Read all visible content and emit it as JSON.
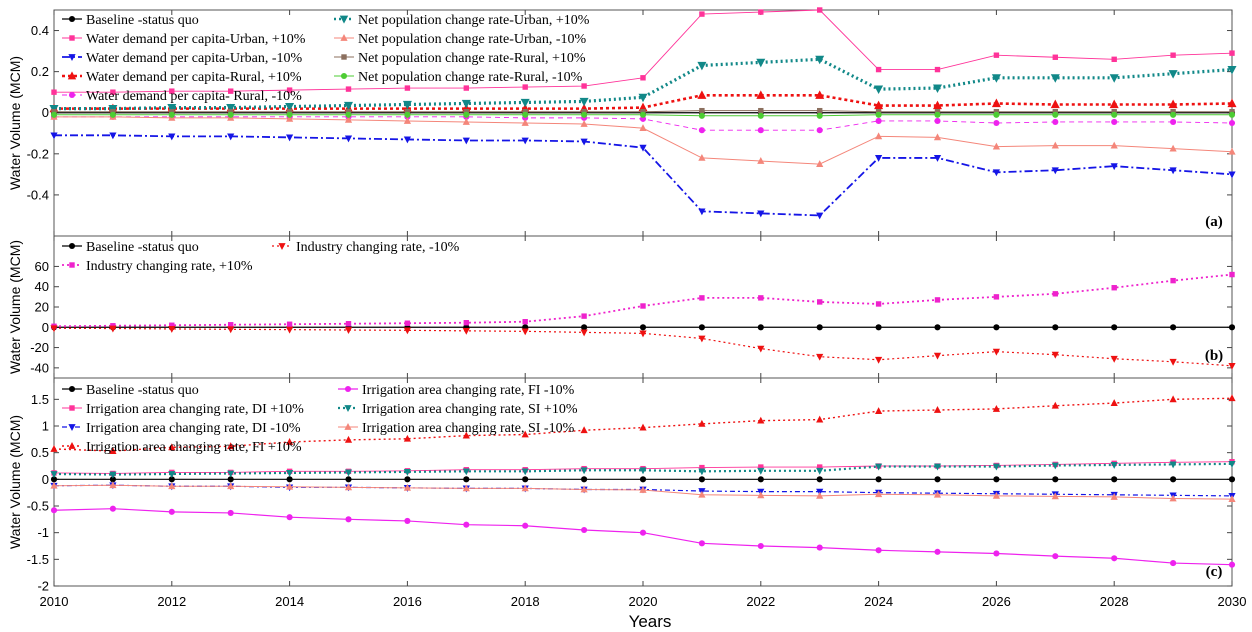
{
  "xlabel": "Years",
  "chart_data": [
    {
      "type": "line",
      "tag": "(a)",
      "ylabel": "Water Volume (MCM)",
      "ylim": [
        -0.6,
        0.5
      ],
      "yticks": [
        -0.4,
        -0.2,
        0,
        0.2,
        0.4
      ],
      "ytick_labels": [
        "-0.4",
        "-0.2",
        "0",
        "0.2",
        "0.4"
      ],
      "xlim": [
        2010,
        2030
      ],
      "legend_cols": [
        [
          "baseline",
          "wdu_p",
          "wdu_m",
          "wdr_p",
          "wdr_m"
        ],
        [
          "npu_p",
          "npu_m",
          "npr_p",
          "npr_m"
        ]
      ],
      "series": [
        {
          "key": "baseline",
          "name": "Baseline -status quo",
          "color": "#000000",
          "dash": "",
          "marker": "circle",
          "width": 1.2,
          "values": [
            0,
            0,
            0,
            0,
            0,
            0,
            0,
            0,
            0,
            0,
            0,
            0,
            0,
            0,
            0,
            0,
            0,
            0,
            0,
            0,
            0
          ]
        },
        {
          "key": "wdu_p",
          "name": "Water demand per capita-Urban, +10%",
          "color": "#ff3399",
          "dash": "",
          "marker": "square",
          "width": 0.9,
          "values": [
            0.1,
            0.1,
            0.105,
            0.105,
            0.11,
            0.115,
            0.12,
            0.12,
            0.125,
            0.13,
            0.17,
            0.48,
            0.49,
            0.5,
            0.21,
            0.21,
            0.28,
            0.27,
            0.26,
            0.28,
            0.29
          ]
        },
        {
          "key": "wdu_m",
          "name": "Water demand per capita-Urban, -10%",
          "color": "#1515e6",
          "dash": "8,3,2,3",
          "marker": "triangle-down",
          "width": 1.8,
          "values": [
            -0.11,
            -0.11,
            -0.115,
            -0.115,
            -0.12,
            -0.125,
            -0.13,
            -0.135,
            -0.135,
            -0.14,
            -0.17,
            -0.48,
            -0.49,
            -0.5,
            -0.22,
            -0.22,
            -0.29,
            -0.28,
            -0.26,
            -0.28,
            -0.3
          ]
        },
        {
          "key": "wdr_p",
          "name": "Water demand per capita-Rural, +10%",
          "color": "#ee1111",
          "dash": "3,3",
          "marker": "triangle-up",
          "width": 2.6,
          "values": [
            0.02,
            0.02,
            0.02,
            0.02,
            0.02,
            0.02,
            0.02,
            0.02,
            0.02,
            0.02,
            0.025,
            0.085,
            0.085,
            0.085,
            0.035,
            0.035,
            0.045,
            0.04,
            0.04,
            0.04,
            0.045
          ]
        },
        {
          "key": "wdr_m",
          "name": "Water demand per capita- Rural, -10%",
          "color": "#ee22ee",
          "dash": "5,4",
          "marker": "circle",
          "width": 0.9,
          "values": [
            -0.02,
            -0.02,
            -0.02,
            -0.02,
            -0.02,
            -0.02,
            -0.02,
            -0.02,
            -0.025,
            -0.025,
            -0.03,
            -0.085,
            -0.085,
            -0.085,
            -0.04,
            -0.04,
            -0.05,
            -0.045,
            -0.045,
            -0.045,
            -0.05
          ]
        },
        {
          "key": "npu_p",
          "name": "Net population change rate-Urban, +10%",
          "color": "#118888",
          "dash": "2,3",
          "marker": "triangle-down",
          "width": 3.2,
          "values": [
            0.02,
            0.02,
            0.025,
            0.025,
            0.03,
            0.035,
            0.04,
            0.045,
            0.05,
            0.055,
            0.075,
            0.23,
            0.245,
            0.26,
            0.115,
            0.12,
            0.17,
            0.17,
            0.17,
            0.19,
            0.21
          ]
        },
        {
          "key": "npu_m",
          "name": "Net population change rate-Urban, -10%",
          "color": "#f4867a",
          "dash": "",
          "marker": "triangle-up",
          "width": 1.0,
          "values": [
            -0.02,
            -0.02,
            -0.025,
            -0.025,
            -0.03,
            -0.035,
            -0.04,
            -0.045,
            -0.05,
            -0.055,
            -0.075,
            -0.22,
            -0.235,
            -0.25,
            -0.115,
            -0.12,
            -0.165,
            -0.16,
            -0.16,
            -0.175,
            -0.19
          ]
        },
        {
          "key": "npr_p",
          "name": "Net population change rate-Rural, +10%",
          "color": "#8b6f5e",
          "dash": "",
          "marker": "square",
          "width": 1.0,
          "values": [
            0.005,
            0.005,
            0.005,
            0.005,
            0.005,
            0.005,
            0.005,
            0.005,
            0.005,
            0.005,
            0.005,
            0.01,
            0.01,
            0.01,
            0.005,
            0.005,
            0.005,
            0.005,
            0.005,
            0.005,
            0.005
          ]
        },
        {
          "key": "npr_m",
          "name": "Net population change rate-Rural, -10%",
          "color": "#4dcc33",
          "dash": "",
          "marker": "circle",
          "width": 1.0,
          "values": [
            -0.01,
            -0.01,
            -0.01,
            -0.01,
            -0.01,
            -0.01,
            -0.01,
            -0.01,
            -0.01,
            -0.01,
            -0.01,
            -0.015,
            -0.015,
            -0.015,
            -0.01,
            -0.01,
            -0.01,
            -0.01,
            -0.01,
            -0.01,
            -0.01
          ]
        }
      ]
    },
    {
      "type": "line",
      "tag": "(b)",
      "ylabel": "Water Volume (MCM)",
      "ylim": [
        -50,
        90
      ],
      "yticks": [
        -40,
        -20,
        0,
        20,
        40,
        60
      ],
      "ytick_labels": [
        "-40",
        "-20",
        "0",
        "20",
        "40",
        "60"
      ],
      "xlim": [
        2010,
        2030
      ],
      "legend_cols": [
        [
          "baseline",
          "ind_p"
        ],
        [
          "ind_m"
        ]
      ],
      "series": [
        {
          "key": "baseline",
          "name": "Baseline -status quo",
          "color": "#000000",
          "dash": "",
          "marker": "circle",
          "width": 1.2,
          "values": [
            0,
            0,
            0,
            0,
            0,
            0,
            0,
            0,
            0,
            0,
            0,
            0,
            0,
            0,
            0,
            0,
            0,
            0,
            0,
            0,
            0
          ]
        },
        {
          "key": "ind_p",
          "name": "Industry changing rate, +10%",
          "color": "#ee22cc",
          "dash": "2,3",
          "marker": "square",
          "width": 1.8,
          "values": [
            1,
            1.5,
            2,
            2.5,
            3,
            3.5,
            4,
            4.5,
            5.5,
            11,
            21,
            29,
            29,
            25,
            23,
            27,
            30,
            33,
            39,
            46,
            52
          ]
        },
        {
          "key": "ind_m",
          "name": "Industry changing rate, -10%",
          "color": "#ee1111",
          "dash": "2,3",
          "marker": "triangle-down",
          "width": 1.2,
          "values": [
            -1,
            -1.2,
            -1.6,
            -2,
            -2.3,
            -2.7,
            -3,
            -3.5,
            -4,
            -5,
            -6,
            -11,
            -21,
            -29,
            -32,
            -28,
            -24,
            -27,
            -31,
            -34,
            -38
          ]
        }
      ]
    },
    {
      "type": "line",
      "tag": "(c)",
      "ylabel": "Water Volume (MCM)",
      "ylim": [
        -2,
        1.9
      ],
      "yticks": [
        -2,
        -1.5,
        -1,
        -0.5,
        0,
        0.5,
        1,
        1.5
      ],
      "ytick_labels": [
        "-2",
        "-1.5",
        "-1",
        "-0.5",
        "0",
        "0.5",
        "1",
        "1.5"
      ],
      "xlim": [
        2010,
        2030
      ],
      "legend_cols": [
        [
          "baseline",
          "di_p",
          "di_m",
          "fi_p"
        ],
        [
          "fi_m",
          "si_p",
          "si_m"
        ]
      ],
      "series": [
        {
          "key": "baseline",
          "name": "Baseline -status quo",
          "color": "#000000",
          "dash": "",
          "marker": "circle",
          "width": 1.2,
          "values": [
            0,
            0,
            0,
            0,
            0,
            0,
            0,
            0,
            0,
            0,
            0,
            0,
            0,
            0,
            0,
            0,
            0,
            0,
            0,
            0,
            0
          ]
        },
        {
          "key": "di_p",
          "name": "Irrigation area changing rate,  DI +10%",
          "color": "#ff3399",
          "dash": "",
          "marker": "square",
          "width": 0.9,
          "values": [
            0.12,
            0.11,
            0.13,
            0.13,
            0.15,
            0.15,
            0.16,
            0.18,
            0.18,
            0.2,
            0.2,
            0.22,
            0.23,
            0.23,
            0.25,
            0.25,
            0.26,
            0.28,
            0.3,
            0.32,
            0.33
          ]
        },
        {
          "key": "di_m",
          "name": "Irrigation area changing rate,  DI -10%",
          "color": "#1515e6",
          "dash": "5,3,2,3",
          "marker": "triangle-down",
          "width": 1.2,
          "values": [
            -0.12,
            -0.11,
            -0.13,
            -0.13,
            -0.15,
            -0.15,
            -0.16,
            -0.17,
            -0.17,
            -0.19,
            -0.19,
            -0.22,
            -0.23,
            -0.23,
            -0.25,
            -0.26,
            -0.27,
            -0.28,
            -0.29,
            -0.3,
            -0.31
          ]
        },
        {
          "key": "fi_p",
          "name": "Irrigation area changing rate,  FI +10%",
          "color": "#ee1111",
          "dash": "2,3",
          "marker": "triangle-up",
          "width": 1.4,
          "values": [
            0.57,
            0.53,
            0.6,
            0.62,
            0.7,
            0.74,
            0.76,
            0.82,
            0.84,
            0.92,
            0.97,
            1.04,
            1.1,
            1.12,
            1.28,
            1.3,
            1.32,
            1.38,
            1.43,
            1.5,
            1.52
          ]
        },
        {
          "key": "fi_m",
          "name": "Irrigation area changing rate,  FI -10%",
          "color": "#ee22ee",
          "dash": "",
          "marker": "circle",
          "width": 1.2,
          "values": [
            -0.58,
            -0.55,
            -0.61,
            -0.63,
            -0.71,
            -0.75,
            -0.78,
            -0.85,
            -0.87,
            -0.95,
            -1.0,
            -1.2,
            -1.25,
            -1.28,
            -1.33,
            -1.36,
            -1.39,
            -1.44,
            -1.48,
            -1.57,
            -1.6
          ]
        },
        {
          "key": "si_p",
          "name": "Irrigation area changing rate,  SI +10%",
          "color": "#118888",
          "dash": "2,3",
          "marker": "triangle-down",
          "width": 2.2,
          "values": [
            0.1,
            0.09,
            0.1,
            0.11,
            0.12,
            0.13,
            0.14,
            0.15,
            0.15,
            0.17,
            0.17,
            0.15,
            0.16,
            0.16,
            0.24,
            0.24,
            0.24,
            0.26,
            0.27,
            0.28,
            0.29
          ]
        },
        {
          "key": "si_m",
          "name": "Irrigation area changing rate,  SI -10%",
          "color": "#f4867a",
          "dash": "",
          "marker": "triangle-up",
          "width": 1.0,
          "values": [
            -0.12,
            -0.11,
            -0.13,
            -0.13,
            -0.14,
            -0.15,
            -0.16,
            -0.17,
            -0.17,
            -0.19,
            -0.2,
            -0.29,
            -0.3,
            -0.31,
            -0.28,
            -0.29,
            -0.31,
            -0.32,
            -0.33,
            -0.36,
            -0.37
          ]
        }
      ]
    }
  ],
  "x_values": [
    2010,
    2011,
    2012,
    2013,
    2014,
    2015,
    2016,
    2017,
    2018,
    2019,
    2020,
    2021,
    2022,
    2023,
    2024,
    2025,
    2026,
    2027,
    2028,
    2029,
    2030
  ],
  "xticks": [
    2010,
    2012,
    2014,
    2016,
    2018,
    2020,
    2022,
    2024,
    2026,
    2028,
    2030
  ],
  "xtick_labels": [
    "2010",
    "2012",
    "2014",
    "2016",
    "2018",
    "2020",
    "2022",
    "2024",
    "2026",
    "2028",
    "2030"
  ]
}
